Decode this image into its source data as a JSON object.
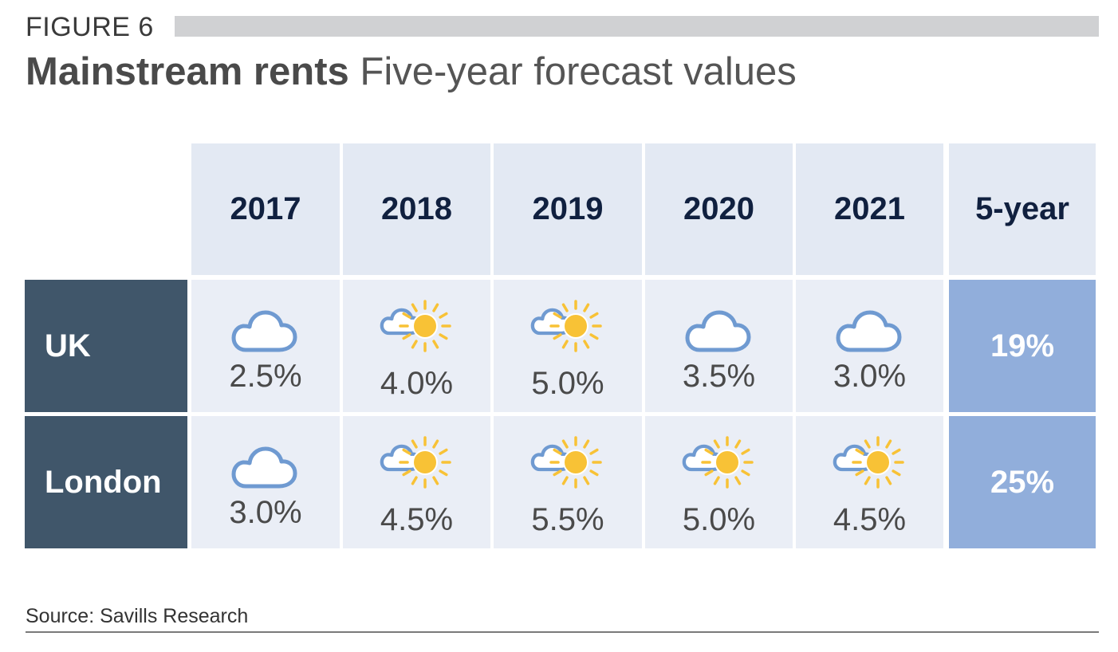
{
  "figure_label": "FIGURE 6",
  "title_bold": "Mainstream rents",
  "title_rest": "Five-year forecast values",
  "source": "Source: Savills Research",
  "colors": {
    "header_bg": "#e3e9f3",
    "row_header_bg": "#40566a",
    "cell_bg": "#eaeef6",
    "total_bg": "#91aedb",
    "cloud": "#6f9ad1",
    "sun": "#f8c236"
  },
  "chart_data": {
    "type": "table",
    "columns": [
      "2017",
      "2018",
      "2019",
      "2020",
      "2021",
      "5-year"
    ],
    "rows": [
      {
        "label": "UK",
        "cells": [
          {
            "value": "2.5%",
            "icon": "cloud-icon"
          },
          {
            "value": "4.0%",
            "icon": "sun-cloud-icon"
          },
          {
            "value": "5.0%",
            "icon": "sun-cloud-icon"
          },
          {
            "value": "3.5%",
            "icon": "cloud-icon"
          },
          {
            "value": "3.0%",
            "icon": "cloud-icon"
          }
        ],
        "total": "19%"
      },
      {
        "label": "London",
        "cells": [
          {
            "value": "3.0%",
            "icon": "cloud-icon"
          },
          {
            "value": "4.5%",
            "icon": "sun-cloud-icon"
          },
          {
            "value": "5.5%",
            "icon": "sun-cloud-icon"
          },
          {
            "value": "5.0%",
            "icon": "sun-cloud-icon"
          },
          {
            "value": "4.5%",
            "icon": "sun-cloud-icon"
          }
        ],
        "total": "25%"
      }
    ]
  }
}
